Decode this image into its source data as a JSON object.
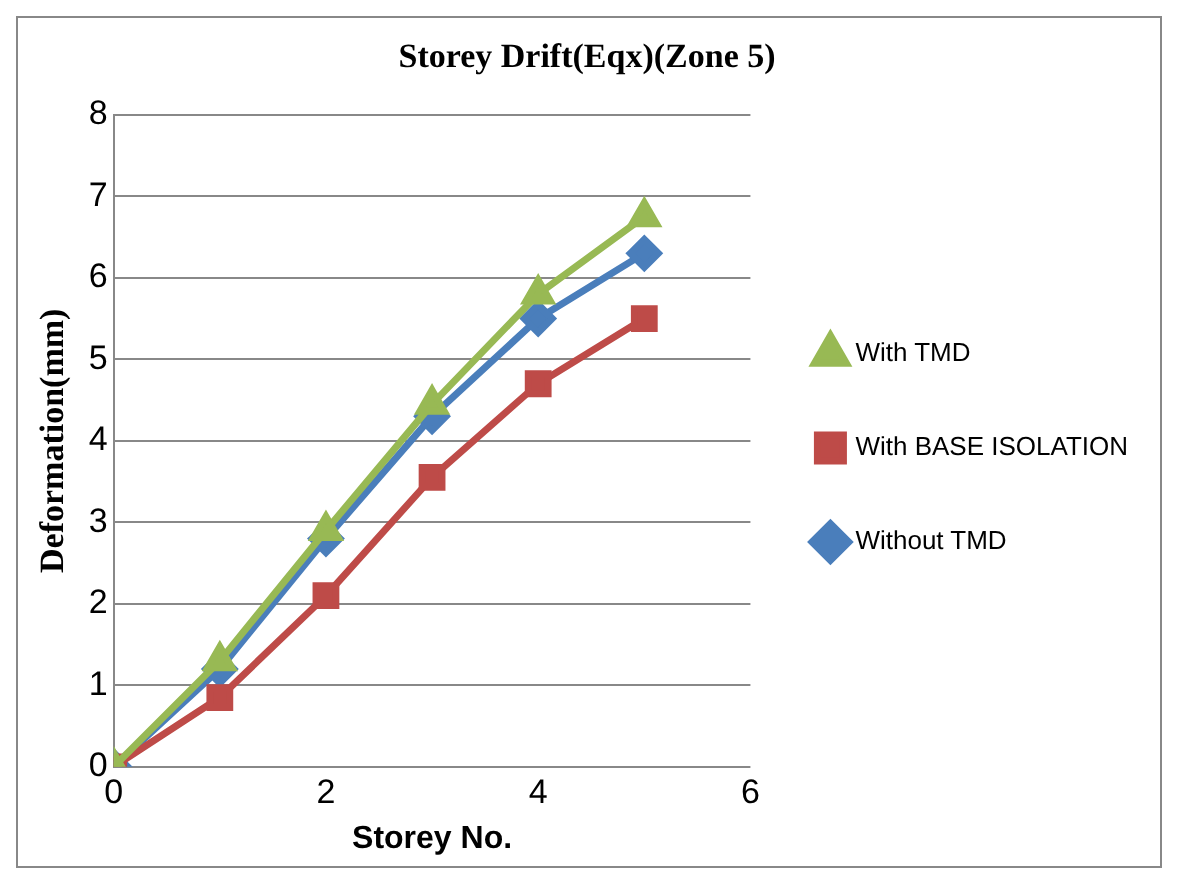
{
  "chart_data": {
    "type": "line",
    "title": "Storey Drift(Eqx)(Zone 5)",
    "xlabel": "Storey No.",
    "ylabel": "Deformation(mm)",
    "x": [
      0,
      1,
      2,
      3,
      4,
      5
    ],
    "series": [
      {
        "name": "Without TMD",
        "color": "#4a7ebb",
        "values": [
          0,
          1.2,
          2.8,
          4.3,
          5.5,
          6.3
        ],
        "marker": "diamond"
      },
      {
        "name": "With BASE ISOLATION",
        "color": "#be4b48",
        "values": [
          0,
          0.85,
          2.1,
          3.55,
          4.7,
          5.5
        ],
        "marker": "square"
      },
      {
        "name": "With TMD",
        "color": "#98b954",
        "values": [
          0,
          1.3,
          2.9,
          4.45,
          5.8,
          6.75
        ],
        "marker": "triangle"
      }
    ],
    "xlim": [
      0,
      6
    ],
    "xticks": [
      0,
      2,
      4,
      6
    ],
    "ylim": [
      0,
      8
    ],
    "yticks": [
      0,
      1,
      2,
      3,
      4,
      5,
      6,
      7,
      8
    ],
    "grid": "y",
    "legend": "right"
  }
}
